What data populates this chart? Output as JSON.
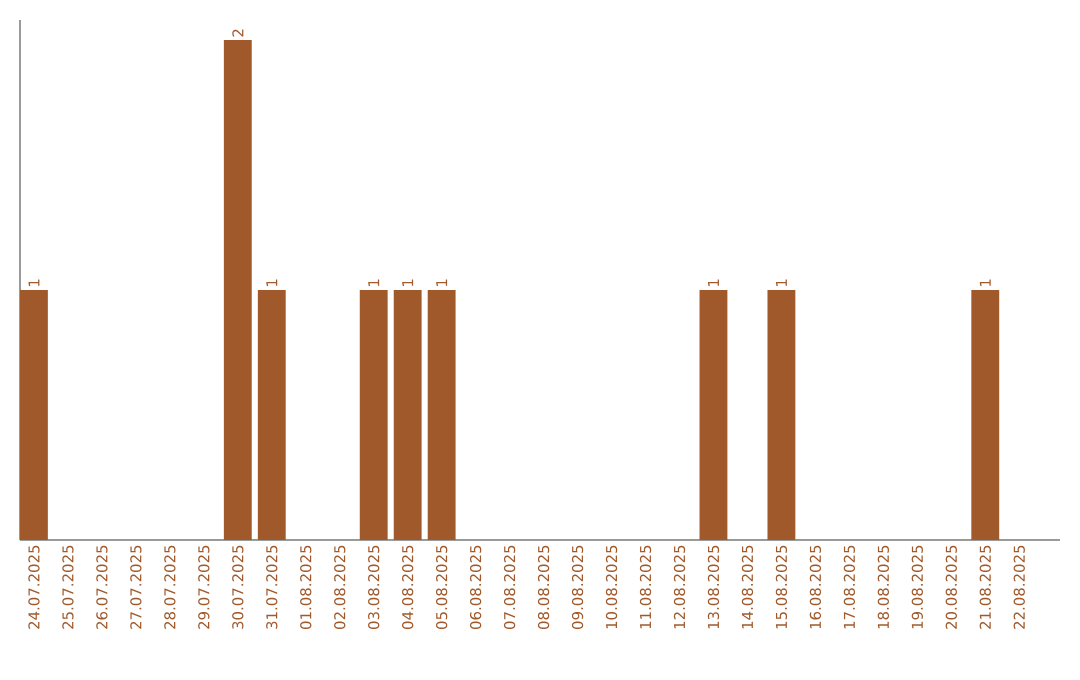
{
  "chart_data": {
    "type": "bar",
    "categories": [
      "24.07.2025",
      "25.07.2025",
      "26.07.2025",
      "27.07.2025",
      "28.07.2025",
      "29.07.2025",
      "30.07.2025",
      "31.07.2025",
      "01.08.2025",
      "02.08.2025",
      "03.08.2025",
      "04.08.2025",
      "05.08.2025",
      "06.08.2025",
      "07.08.2025",
      "08.08.2025",
      "09.08.2025",
      "10.08.2025",
      "11.08.2025",
      "12.08.2025",
      "13.08.2025",
      "14.08.2025",
      "15.08.2025",
      "16.08.2025",
      "17.08.2025",
      "18.08.2025",
      "19.08.2025",
      "20.08.2025",
      "21.08.2025",
      "22.08.2025"
    ],
    "values": [
      1,
      0,
      0,
      0,
      0,
      0,
      2,
      1,
      0,
      0,
      1,
      1,
      1,
      0,
      0,
      0,
      0,
      0,
      0,
      0,
      1,
      0,
      1,
      0,
      0,
      0,
      0,
      0,
      1,
      0
    ],
    "value_labels": [
      "1",
      null,
      null,
      null,
      null,
      null,
      "2",
      "1",
      null,
      null,
      "1",
      "1",
      "1",
      null,
      null,
      null,
      null,
      null,
      null,
      null,
      "1",
      null,
      "1",
      null,
      null,
      null,
      null,
      null,
      "1",
      null
    ],
    "color": "#a0592a",
    "ylim": [
      0,
      2.08
    ],
    "tick_labels": "x"
  }
}
